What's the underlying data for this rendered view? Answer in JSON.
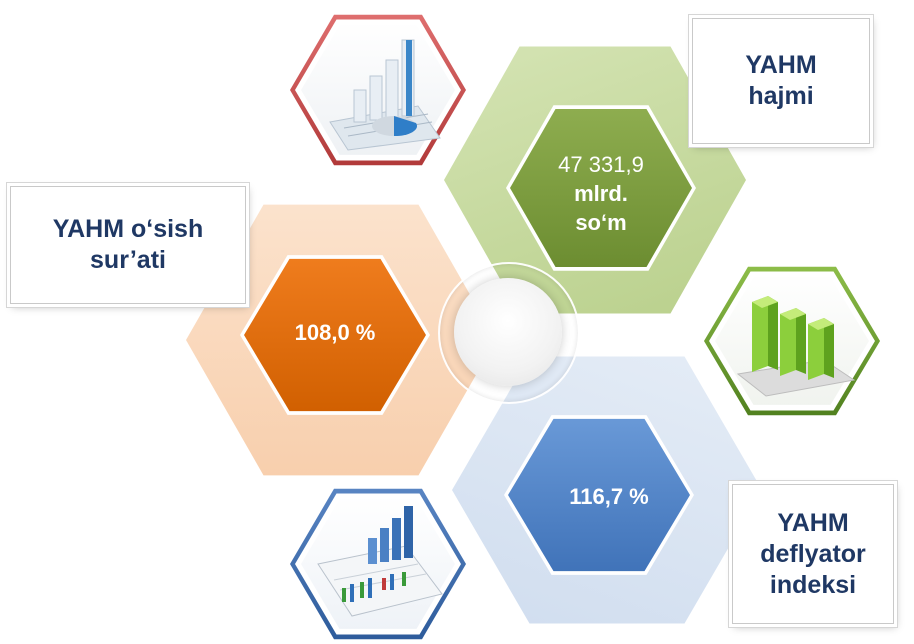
{
  "indicators": {
    "volume": {
      "title_line1": "YAHM",
      "title_line2": "hajmi",
      "value_number": "47 331,9",
      "value_unit_line1": "mlrd.",
      "value_unit_line2": "so‘m",
      "color": "#7a9a3c"
    },
    "growth": {
      "title_line1": "YAHM o‘sish",
      "title_line2": "sur’ati",
      "value": "108,0 %",
      "color": "#e36c09"
    },
    "deflator": {
      "title_line1": "YAHM",
      "title_line2": "deflyator",
      "title_line3": "indeksi",
      "value": "116,7 %",
      "color": "#4f81bd"
    }
  },
  "colors": {
    "label_text": "#1f3864",
    "green_light": "#c3d69b",
    "orange_light": "#fbd4b4",
    "blue_light": "#dbe5f1"
  },
  "icons": [
    "bar-pie-chart-icon",
    "green-bar-chart-icon",
    "report-chart-icon"
  ]
}
